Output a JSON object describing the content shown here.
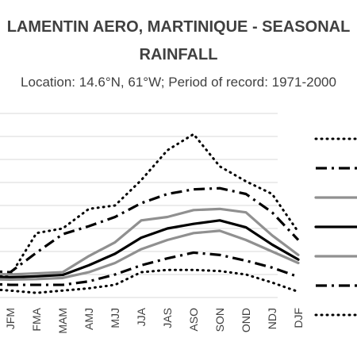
{
  "chart_data": {
    "type": "line",
    "title_lines": [
      "LAMENTIN AERO, MARTINIQUE - SEASONAL",
      "RAINFALL"
    ],
    "subtitle": "Location: 14.6°N, 61°W; Period of record: 1971-2000",
    "categories": [
      "DJF",
      "JFM",
      "FMA",
      "MAM",
      "AMJ",
      "MJJ",
      "JJA",
      "JAS",
      "ASO",
      "SON",
      "OND",
      "NDJ",
      "DJF"
    ],
    "grid": true,
    "legend_position": "right",
    "series": [
      {
        "values": [
          100,
          95,
          280,
          300,
          385,
          400,
          510,
          640,
          710,
          570,
          505,
          450,
          285
        ],
        "color": "#000000",
        "style": "dotted"
      },
      {
        "values": [
          115,
          110,
          195,
          275,
          310,
          350,
          410,
          450,
          470,
          475,
          450,
          370,
          250
        ],
        "color": "#000000",
        "style": "dashdot"
      },
      {
        "values": [
          105,
          100,
          105,
          110,
          180,
          240,
          335,
          350,
          380,
          385,
          370,
          270,
          185
        ],
        "color": "#909090",
        "style": "solid"
      },
      {
        "values": [
          90,
          88,
          92,
          98,
          140,
          190,
          260,
          300,
          320,
          335,
          305,
          230,
          165
        ],
        "color": "#000000",
        "style": "solid"
      },
      {
        "values": [
          80,
          78,
          80,
          85,
          110,
          150,
          210,
          250,
          280,
          290,
          250,
          200,
          150
        ],
        "color": "#909090",
        "style": "solid"
      },
      {
        "values": [
          60,
          55,
          55,
          55,
          70,
          100,
          140,
          170,
          195,
          185,
          160,
          130,
          90
        ],
        "color": "#000000",
        "style": "dashdot"
      },
      {
        "values": [
          38,
          30,
          20,
          30,
          40,
          55,
          110,
          120,
          120,
          115,
          100,
          65,
          25
        ],
        "color": "#000000",
        "style": "dotted"
      }
    ]
  }
}
